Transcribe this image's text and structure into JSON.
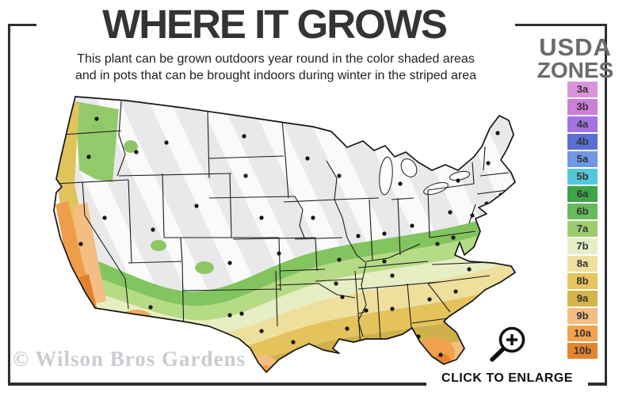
{
  "header": {
    "title": "WHERE IT GROWS",
    "subtitle_line1": "This plant can be grown outdoors year round in the color shaded areas",
    "subtitle_line2": "and in pots that can be brought indoors during winter in the striped area"
  },
  "legend": {
    "title_line1": "USDA",
    "title_line2": "ZONES",
    "zones": [
      {
        "label": "3a",
        "color": "#d993dc"
      },
      {
        "label": "3b",
        "color": "#cb7fd6"
      },
      {
        "label": "4a",
        "color": "#a472e3"
      },
      {
        "label": "4b",
        "color": "#5a6ed3"
      },
      {
        "label": "5a",
        "color": "#6f97e5"
      },
      {
        "label": "5b",
        "color": "#54c8da"
      },
      {
        "label": "6a",
        "color": "#3fa448"
      },
      {
        "label": "6b",
        "color": "#67bb5d"
      },
      {
        "label": "7a",
        "color": "#9ccd6d"
      },
      {
        "label": "7b",
        "color": "#e4efc7"
      },
      {
        "label": "8a",
        "color": "#f0e0a0"
      },
      {
        "label": "8b",
        "color": "#e7c45d"
      },
      {
        "label": "9a",
        "color": "#d3b54b"
      },
      {
        "label": "9b",
        "color": "#f4bd81"
      },
      {
        "label": "10a",
        "color": "#f2a14c"
      },
      {
        "label": "10b",
        "color": "#e5842f"
      }
    ]
  },
  "map": {
    "region": "continental United States",
    "striped_area_color_base": "#e9e9eb",
    "stripe_color": "#fafafb",
    "state_border_color": "#1c1c1c",
    "city_dot_color": "#111111"
  },
  "footer": {
    "watermark": "© Wilson Bros Gardens",
    "enlarge_label": "CLICK TO ENLARGE",
    "enlarge_icon": "magnifier-plus-icon"
  }
}
